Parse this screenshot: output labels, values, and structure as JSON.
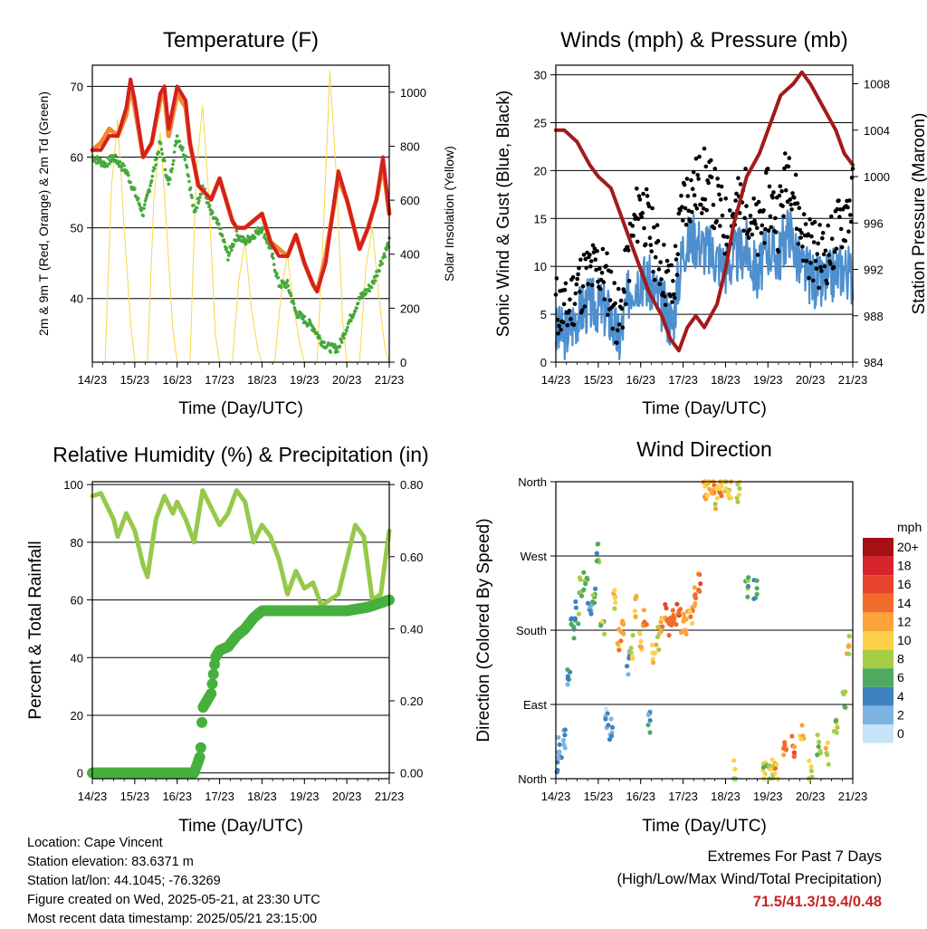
{
  "panels": {
    "temperature": {
      "title": "Temperature (F)",
      "ylabel_left": "2m & 9m T (Red, Orange) & 2m Td (Green)",
      "ylabel_right": "Solar Insolation (Yellow)",
      "xlabel": "Time (Day/UTC)"
    },
    "winds": {
      "title": "Winds (mph) & Pressure (mb)",
      "ylabel_left": "Sonic Wind & Gust (Blue, Black)",
      "ylabel_right": "Station Pressure (Maroon)",
      "xlabel": "Time (Day/UTC)"
    },
    "humidity": {
      "title": "Relative Humidity (%) & Precipitation (in)",
      "ylabel_left": "Percent & Total Rainfall",
      "xlabel": "Time (Day/UTC)"
    },
    "direction": {
      "title": "Wind Direction",
      "ylabel_left": "Direction (Colored By Speed)",
      "xlabel": "Time (Day/UTC)",
      "legend_title": "mph"
    }
  },
  "colors": {
    "temp_2m": "#d42020",
    "temp_9m": "#f08a2a",
    "dewpoint": "#46a83a",
    "solar": "#f5d84a",
    "wind": "#4e8fcf",
    "gust": "#000000",
    "pressure": "#a31a1a",
    "rh": "#96c84a",
    "precip": "#46b03c"
  },
  "speed_scale": {
    "labels": [
      "20+",
      "18",
      "16",
      "14",
      "12",
      "10",
      "8",
      "6",
      "4",
      "2",
      "0"
    ],
    "colors": [
      "#a50f15",
      "#d7262b",
      "#e8432b",
      "#f26a2c",
      "#fca33a",
      "#fdd24a",
      "#a5cd45",
      "#4faa5d",
      "#3d82bf",
      "#7db3e2",
      "#c6e4f7"
    ]
  },
  "footer": {
    "location": "Location: Cape Vincent",
    "elevation": "Station elevation: 83.6371 m",
    "latlon": "Station lat/lon: 44.1045; -76.3269",
    "created": "Figure created on Wed, 2025-05-21, at 23:30 UTC",
    "recent": "Most recent data timestamp: 2025/05/21 23:15:00",
    "extremes_title": "Extremes For Past 7 Days",
    "extremes_sub": "(High/Low/Max Wind/Total Precipitation)",
    "extremes_values": "71.5/41.3/19.4/0.48"
  },
  "chart_data": [
    {
      "type": "line",
      "title": "Temperature (F)",
      "xlabel": "Time (Day/UTC)",
      "ylabel": "2m & 9m T (Red, Orange) & 2m Td (Green)",
      "y2label": "Solar Insolation (Yellow)",
      "x_ticks": [
        "14/23",
        "15/23",
        "16/23",
        "17/23",
        "18/23",
        "19/23",
        "20/23",
        "21/23"
      ],
      "xlim": [
        0,
        7
      ],
      "ylim": [
        31,
        73
      ],
      "y_ticks": [
        40,
        50,
        60,
        70
      ],
      "y2lim": [
        0,
        1100
      ],
      "y2_ticks": [
        0,
        200,
        400,
        600,
        800,
        1000
      ],
      "series": [
        {
          "name": "2m T",
          "axis": "left",
          "color": "#d42020",
          "x": [
            0,
            0.2,
            0.4,
            0.6,
            0.8,
            0.9,
            1.0,
            1.2,
            1.4,
            1.6,
            1.7,
            1.8,
            2.0,
            2.2,
            2.3,
            2.5,
            2.8,
            3.0,
            3.2,
            3.3,
            3.4,
            3.5,
            3.6,
            3.8,
            4.0,
            4.2,
            4.4,
            4.6,
            4.8,
            5.0,
            5.2,
            5.3,
            5.5,
            5.8,
            6.0,
            6.3,
            6.5,
            6.7,
            6.85,
            7.0
          ],
          "y": [
            61,
            61,
            63,
            63,
            67,
            71,
            68,
            60,
            62,
            69,
            70,
            64,
            70,
            68,
            62,
            56,
            54,
            57,
            53,
            51,
            50,
            50,
            50,
            51,
            52,
            48,
            46,
            46,
            49,
            45,
            42,
            41,
            45,
            58,
            54,
            47,
            50,
            54,
            60,
            52
          ]
        },
        {
          "name": "9m T",
          "axis": "left",
          "color": "#f08a2a",
          "x": [
            0,
            0.2,
            0.4,
            0.6,
            0.8,
            0.9,
            1.0,
            1.2,
            1.4,
            1.6,
            1.7,
            1.8,
            2.0,
            2.2,
            2.3,
            2.5,
            2.8,
            3.0,
            3.2,
            3.3,
            3.4,
            3.5,
            3.6,
            3.8,
            4.0,
            4.2,
            4.4,
            4.6,
            4.8,
            5.0,
            5.2,
            5.3,
            5.5,
            5.8,
            6.0,
            6.3,
            6.5,
            6.7,
            6.85,
            7.0
          ],
          "y": [
            61,
            62,
            64,
            63,
            66,
            70,
            67,
            60,
            62,
            68,
            69,
            63,
            69,
            67,
            62,
            56,
            54,
            57,
            53,
            51,
            50,
            50,
            50,
            51,
            52,
            48,
            47,
            46,
            49,
            45,
            42,
            41,
            46,
            57,
            54,
            47,
            50,
            54,
            59,
            52
          ]
        },
        {
          "name": "2m Td",
          "axis": "left",
          "color": "#46a83a",
          "x": [
            0,
            0.3,
            0.5,
            0.8,
            1.0,
            1.2,
            1.4,
            1.6,
            1.8,
            2.0,
            2.2,
            2.4,
            2.6,
            2.8,
            3.0,
            3.2,
            3.4,
            3.6,
            3.8,
            4.0,
            4.2,
            4.4,
            4.6,
            4.8,
            5.0,
            5.2,
            5.4,
            5.6,
            5.8,
            6.0,
            6.3,
            6.6,
            6.8,
            7.0
          ],
          "y": [
            60,
            59,
            60,
            58,
            55,
            52,
            57,
            62,
            56,
            63,
            60,
            52,
            56,
            52,
            50,
            46,
            49,
            48,
            49,
            50,
            47,
            42,
            42,
            38,
            37,
            36,
            34,
            33,
            33,
            36,
            40,
            42,
            45,
            48
          ]
        },
        {
          "name": "Solar Insolation",
          "axis": "right",
          "color": "#f5d84a",
          "x": [
            0,
            0.3,
            0.45,
            0.6,
            0.75,
            0.9,
            1.0,
            1.3,
            1.45,
            1.6,
            1.75,
            1.9,
            2.0,
            2.3,
            2.45,
            2.6,
            2.75,
            2.9,
            3.0,
            3.3,
            3.45,
            3.6,
            3.75,
            3.9,
            4.0,
            4.3,
            4.45,
            4.6,
            4.75,
            4.9,
            5.0,
            5.3,
            5.45,
            5.6,
            5.75,
            5.9,
            6.0,
            6.3,
            6.45,
            6.6,
            6.75,
            6.9,
            7.0
          ],
          "y": [
            0,
            0,
            650,
            900,
            500,
            150,
            0,
            0,
            600,
            850,
            500,
            120,
            0,
            0,
            700,
            950,
            600,
            100,
            0,
            0,
            300,
            450,
            200,
            50,
            0,
            0,
            250,
            400,
            200,
            60,
            0,
            0,
            500,
            1080,
            700,
            150,
            0,
            0,
            350,
            500,
            250,
            50,
            0
          ]
        }
      ]
    },
    {
      "type": "line",
      "title": "Winds (mph) & Pressure (mb)",
      "xlabel": "Time (Day/UTC)",
      "ylabel": "Sonic Wind & Gust (Blue, Black)",
      "y2label": "Station Pressure (Maroon)",
      "x_ticks": [
        "14/23",
        "15/23",
        "16/23",
        "17/23",
        "18/23",
        "19/23",
        "20/23",
        "21/23"
      ],
      "xlim": [
        0,
        7
      ],
      "ylim": [
        0,
        31
      ],
      "y_ticks": [
        0,
        5,
        10,
        15,
        20,
        25,
        30
      ],
      "y2lim": [
        984,
        1009.6
      ],
      "y2_ticks": [
        984,
        988,
        992,
        996,
        1000,
        1004,
        1008
      ],
      "series": [
        {
          "name": "Sonic Wind",
          "axis": "left",
          "color": "#4e8fcf",
          "x": [
            0,
            0.25,
            0.5,
            0.75,
            1.0,
            1.25,
            1.5,
            1.75,
            2.0,
            2.25,
            2.5,
            2.75,
            3.0,
            3.25,
            3.5,
            3.75,
            4.0,
            4.25,
            4.5,
            4.75,
            5.0,
            5.25,
            5.5,
            5.75,
            6.0,
            6.25,
            6.5,
            6.75,
            7.0
          ],
          "y": [
            3,
            3,
            5,
            6,
            6,
            5,
            2,
            8,
            9,
            8,
            6,
            4,
            12,
            13,
            12,
            11,
            10,
            11,
            12,
            9,
            12,
            11,
            14,
            10,
            9,
            8,
            9,
            10,
            9
          ]
        },
        {
          "name": "Gust",
          "axis": "left",
          "color": "#000000",
          "x": [
            0,
            0.25,
            0.5,
            0.75,
            1.0,
            1.25,
            1.5,
            1.75,
            2.0,
            2.25,
            2.5,
            2.75,
            3.0,
            3.25,
            3.5,
            3.75,
            4.0,
            4.25,
            4.5,
            4.75,
            5.0,
            5.25,
            5.5,
            5.75,
            6.0,
            6.25,
            6.5,
            6.75,
            7.0
          ],
          "y": [
            6,
            5,
            8,
            9,
            10,
            8,
            4,
            12,
            17,
            13,
            10,
            7,
            17,
            18,
            19,
            17,
            14,
            16,
            17,
            13,
            17,
            15,
            21,
            14,
            12,
            11,
            12,
            15,
            17
          ]
        },
        {
          "name": "Station Pressure",
          "axis": "right",
          "color": "#a31a1a",
          "x": [
            0,
            0.2,
            0.5,
            0.8,
            1.0,
            1.3,
            1.5,
            1.8,
            2.0,
            2.2,
            2.5,
            2.7,
            2.9,
            3.1,
            3.3,
            3.5,
            3.8,
            4.0,
            4.2,
            4.5,
            4.8,
            5.0,
            5.3,
            5.6,
            5.8,
            6.0,
            6.3,
            6.6,
            6.8,
            7.0
          ],
          "y": [
            1004,
            1004,
            1003,
            1001,
            1000,
            999,
            997,
            994,
            992,
            990,
            988,
            986,
            985,
            987,
            988,
            987,
            989,
            992,
            996,
            1000,
            1002,
            1004,
            1007,
            1008,
            1009,
            1008,
            1006,
            1004,
            1002,
            1001
          ]
        }
      ]
    },
    {
      "type": "line",
      "title": "Relative Humidity (%) & Precipitation (in)",
      "xlabel": "Time (Day/UTC)",
      "ylabel": "Percent & Total Rainfall",
      "x_ticks": [
        "14/23",
        "15/23",
        "16/23",
        "17/23",
        "18/23",
        "19/23",
        "20/23",
        "21/23"
      ],
      "xlim": [
        0,
        7
      ],
      "ylim": [
        -2,
        101
      ],
      "y_ticks": [
        0,
        20,
        40,
        60,
        80,
        100
      ],
      "y2lim": [
        -0.016,
        0.808
      ],
      "y2_ticks": [
        0.0,
        0.2,
        0.4,
        0.6,
        0.8
      ],
      "series": [
        {
          "name": "Relative Humidity",
          "axis": "left",
          "color": "#96c84a",
          "x": [
            0,
            0.2,
            0.3,
            0.5,
            0.6,
            0.8,
            1.0,
            1.2,
            1.3,
            1.5,
            1.7,
            1.9,
            2.0,
            2.2,
            2.4,
            2.6,
            2.8,
            3.0,
            3.2,
            3.4,
            3.6,
            3.8,
            4.0,
            4.2,
            4.4,
            4.6,
            4.8,
            5.0,
            5.2,
            5.4,
            5.6,
            5.8,
            6.0,
            6.2,
            6.4,
            6.6,
            6.8,
            7.0
          ],
          "y": [
            96,
            97,
            94,
            88,
            82,
            90,
            84,
            72,
            68,
            88,
            96,
            90,
            94,
            88,
            80,
            98,
            92,
            86,
            90,
            98,
            94,
            80,
            86,
            82,
            74,
            62,
            70,
            64,
            66,
            58,
            60,
            62,
            74,
            86,
            82,
            60,
            62,
            84
          ]
        },
        {
          "name": "Total Precipitation",
          "axis": "right",
          "color": "#46b03c",
          "x": [
            0,
            0.5,
            1.0,
            1.5,
            2.0,
            2.4,
            2.55,
            2.6,
            2.7,
            2.8,
            2.9,
            3.0,
            3.2,
            3.4,
            3.6,
            3.8,
            4.0,
            4.5,
            5.0,
            5.5,
            6.0,
            6.5,
            7.0
          ],
          "y": [
            0,
            0,
            0,
            0,
            0,
            0,
            0.05,
            0.18,
            0.2,
            0.22,
            0.32,
            0.34,
            0.35,
            0.38,
            0.4,
            0.43,
            0.45,
            0.45,
            0.45,
            0.45,
            0.45,
            0.46,
            0.48
          ]
        }
      ]
    },
    {
      "type": "scatter",
      "title": "Wind Direction",
      "xlabel": "Time (Day/UTC)",
      "ylabel": "Direction (Colored By Speed)",
      "x_ticks": [
        "14/23",
        "15/23",
        "16/23",
        "17/23",
        "18/23",
        "19/23",
        "20/23",
        "21/23"
      ],
      "xlim": [
        0,
        7
      ],
      "y_ticks": [
        "North",
        "East",
        "South",
        "West",
        "North"
      ],
      "ylim": [
        0,
        360
      ],
      "colorbar": {
        "label": "mph",
        "ticks": [
          "20+",
          "18",
          "16",
          "14",
          "12",
          "10",
          "8",
          "6",
          "4",
          "2",
          "0"
        ]
      },
      "series": [
        {
          "name": "Direction",
          "x": [
            0.05,
            0.1,
            0.2,
            0.3,
            0.4,
            0.5,
            0.6,
            0.7,
            0.8,
            0.9,
            1.0,
            1.1,
            1.2,
            1.3,
            1.4,
            1.5,
            1.6,
            1.7,
            1.8,
            1.9,
            2.0,
            2.1,
            2.2,
            2.3,
            2.4,
            2.5,
            2.6,
            2.7,
            2.8,
            2.9,
            3.0,
            3.1,
            3.2,
            3.3,
            3.4,
            3.5,
            3.6,
            3.7,
            3.8,
            3.9,
            4.0,
            4.1,
            4.2,
            4.3,
            4.5,
            4.7,
            4.9,
            5.0,
            5.1,
            5.2,
            5.4,
            5.6,
            5.8,
            6.0,
            6.2,
            6.4,
            6.6,
            6.8,
            6.9
          ],
          "y": [
            20,
            35,
            50,
            120,
            180,
            200,
            230,
            240,
            200,
            225,
            270,
            190,
            70,
            60,
            220,
            170,
            190,
            140,
            160,
            210,
            170,
            190,
            70,
            150,
            170,
            180,
            200,
            180,
            200,
            210,
            190,
            190,
            200,
            220,
            240,
            350,
            355,
            350,
            340,
            355,
            360,
            350,
            10,
            350,
            230,
            230,
            5,
            10,
            15,
            5,
            30,
            40,
            60,
            10,
            40,
            30,
            60,
            100,
            160
          ],
          "speed": [
            4,
            3,
            3,
            4,
            5,
            6,
            7,
            7,
            3,
            6,
            6,
            8,
            2,
            3,
            10,
            12,
            11,
            3,
            9,
            12,
            11,
            13,
            4,
            11,
            10,
            12,
            14,
            13,
            15,
            14,
            12,
            11,
            12,
            13,
            14,
            12,
            11,
            13,
            10,
            12,
            9,
            10,
            8,
            9,
            6,
            5,
            8,
            7,
            9,
            12,
            13,
            14,
            11,
            9,
            8,
            10,
            8,
            7,
            10
          ]
        }
      ]
    }
  ]
}
